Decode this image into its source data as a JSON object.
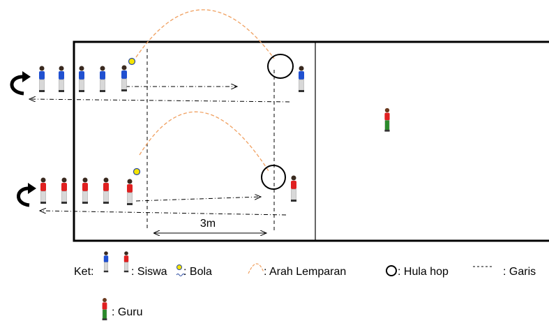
{
  "diagram": {
    "distance_label": "3m"
  },
  "legend": {
    "prefix": "Ket:",
    "items": [
      {
        "label": ": Siswa"
      },
      {
        "label": ": Bola"
      },
      {
        "label": ": Arah Lemparan"
      },
      {
        "label": ": Hula hop"
      },
      {
        "label": ": Garis"
      }
    ],
    "second_row": {
      "label": ": Guru"
    }
  }
}
